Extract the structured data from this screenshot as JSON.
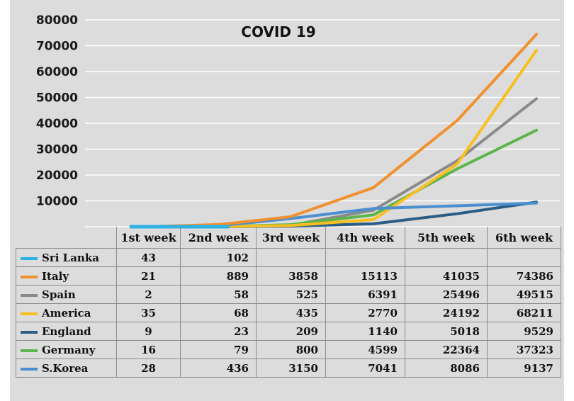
{
  "chart_data": {
    "type": "line",
    "title": "COVID 19",
    "categories": [
      "1st week",
      "2nd week",
      "3rd week",
      "4th week",
      "5th week",
      "6th week"
    ],
    "yticks": [
      10000,
      20000,
      30000,
      40000,
      50000,
      60000,
      70000,
      80000
    ],
    "ylim": [
      0,
      80000
    ],
    "grid": true,
    "legend": "table-below",
    "series": [
      {
        "name": "Sri Lanka",
        "color": "#2bb3e6",
        "values": [
          43,
          102,
          null,
          null,
          null,
          null
        ]
      },
      {
        "name": "Italy",
        "color": "#f0902e",
        "values": [
          21,
          889,
          3858,
          15113,
          41035,
          74386
        ]
      },
      {
        "name": "Spain",
        "color": "#8a8a8a",
        "values": [
          2,
          58,
          525,
          6391,
          25496,
          49515
        ]
      },
      {
        "name": "America",
        "color": "#f9bf1e",
        "values": [
          35,
          68,
          435,
          2770,
          24192,
          68211
        ]
      },
      {
        "name": "England",
        "color": "#2b5d84",
        "values": [
          9,
          23,
          209,
          1140,
          5018,
          9529
        ]
      },
      {
        "name": "Germany",
        "color": "#5bb54a",
        "values": [
          16,
          79,
          800,
          4599,
          22364,
          37323
        ]
      },
      {
        "name": "S.Korea",
        "color": "#4a8fd0",
        "values": [
          28,
          436,
          3150,
          7041,
          8086,
          9137
        ]
      }
    ]
  }
}
